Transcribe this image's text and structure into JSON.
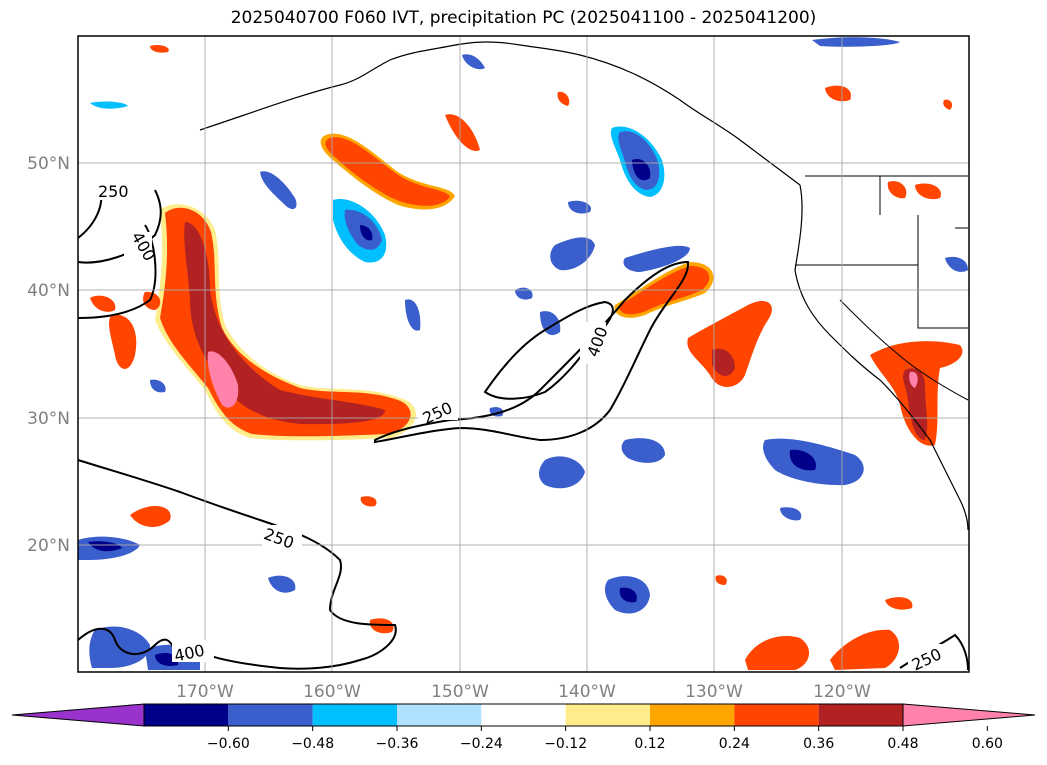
{
  "title": "2025040700 F060 IVT, precipitation PC (2025041100 - 2025041200)",
  "map": {
    "lat_labels": [
      "50°N",
      "40°N",
      "30°N",
      "20°N"
    ],
    "lon_labels": [
      "170°W",
      "160°W",
      "150°W",
      "140°W",
      "130°W",
      "120°W"
    ],
    "contour_labels": [
      "250",
      "400",
      "400",
      "250",
      "250",
      "400",
      "250"
    ],
    "contour_levels": [
      250,
      400
    ],
    "extent": {
      "lon": [
        -180,
        -110
      ],
      "lat": [
        10,
        60
      ]
    }
  },
  "colorbar": {
    "tick_labels": [
      "−0.60",
      "−0.48",
      "−0.36",
      "−0.24",
      "−0.12",
      "0.12",
      "0.24",
      "0.36",
      "0.48",
      "0.60"
    ],
    "colors": [
      "#9933cc",
      "#00008b",
      "#3a5fcd",
      "#00bfff",
      "#b0e2ff",
      "#ffffff",
      "#ffec8b",
      "#ffa500",
      "#ff4500",
      "#b22222",
      "#ff82ab"
    ]
  }
}
